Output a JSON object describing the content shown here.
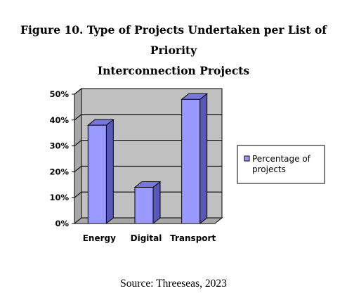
{
  "title_lines": [
    "Figure 10. Type of Projects Undertaken per List of Priority",
    "Interconnection Projects"
  ],
  "source": "Source: Threeseas, 2023",
  "chart_data": {
    "type": "bar",
    "style": "3d",
    "categories": [
      "Energy",
      "Digital",
      "Transport"
    ],
    "series": [
      {
        "name": "Percentage of projects",
        "values": [
          0.38,
          0.14,
          0.48
        ],
        "color": "#9999ff"
      }
    ],
    "ylim": [
      0,
      0.5
    ],
    "yticks": [
      0,
      0.1,
      0.2,
      0.3,
      0.4,
      0.5
    ],
    "ytick_labels": [
      "0%",
      "10%",
      "20%",
      "30%",
      "40%",
      "50%"
    ],
    "grid": true,
    "legend": {
      "position": "right",
      "label_lines": [
        "Percentage of",
        "projects"
      ]
    }
  }
}
